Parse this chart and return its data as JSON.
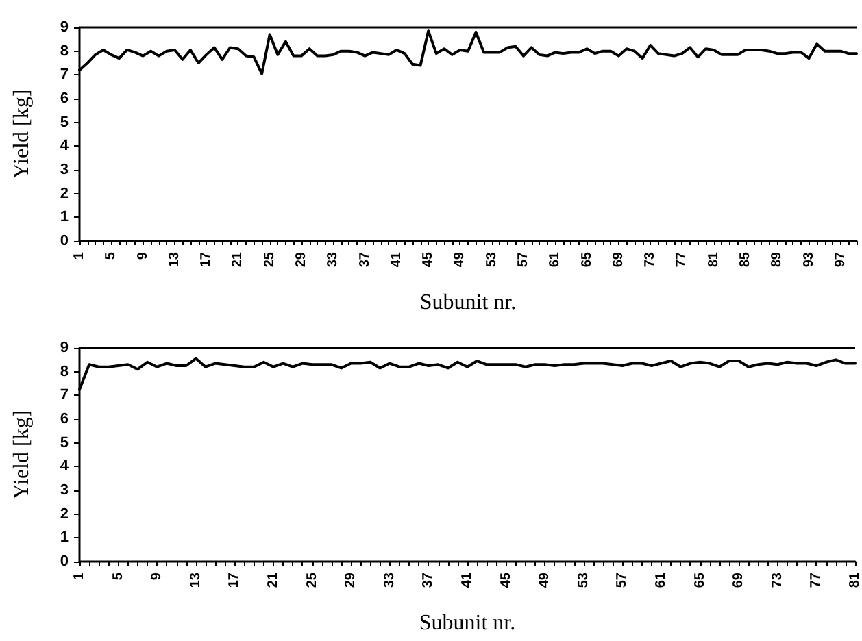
{
  "chart_data": [
    {
      "type": "line",
      "xlabel": "Subunit nr.",
      "ylabel": "Yield [kg]",
      "categories": [
        "1",
        null,
        null,
        null,
        "5",
        null,
        null,
        null,
        "9",
        null,
        null,
        null,
        "13",
        null,
        null,
        null,
        "17",
        null,
        null,
        null,
        "21",
        null,
        null,
        null,
        "25",
        null,
        null,
        null,
        "29",
        null,
        null,
        null,
        "33",
        null,
        null,
        null,
        "37",
        null,
        null,
        null,
        "41",
        null,
        null,
        null,
        "45",
        null,
        null,
        null,
        "49",
        null,
        null,
        null,
        "53",
        null,
        null,
        null,
        "57",
        null,
        null,
        null,
        "61",
        null,
        null,
        null,
        "65",
        null,
        null,
        null,
        "69",
        null,
        null,
        null,
        "73",
        null,
        null,
        null,
        "77",
        null,
        null,
        null,
        "81",
        null,
        null,
        null,
        "85",
        null,
        null,
        null,
        "89",
        null,
        null,
        null,
        "93",
        null,
        null,
        null,
        "97",
        null,
        null
      ],
      "series": [
        {
          "color": "#000000",
          "values": [
            7.2,
            7.5,
            7.85,
            8.05,
            7.85,
            7.7,
            8.05,
            7.95,
            7.8,
            8.0,
            7.8,
            8.0,
            8.05,
            7.65,
            8.05,
            7.5,
            7.85,
            8.15,
            7.65,
            8.15,
            8.1,
            7.8,
            7.75,
            7.05,
            8.7,
            7.85,
            8.4,
            7.8,
            7.8,
            8.1,
            7.8,
            7.8,
            7.85,
            8.0,
            8.0,
            7.95,
            7.8,
            7.95,
            7.9,
            7.85,
            8.05,
            7.9,
            7.45,
            7.4,
            8.85,
            7.9,
            8.1,
            7.85,
            8.05,
            8.0,
            8.8,
            7.95,
            7.95,
            7.95,
            8.15,
            8.2,
            7.8,
            8.15,
            7.85,
            7.8,
            7.95,
            7.9,
            7.95,
            7.95,
            8.1,
            7.9,
            8.0,
            8.0,
            7.8,
            8.1,
            8.0,
            7.7,
            8.25,
            7.9,
            7.85,
            7.8,
            7.9,
            8.15,
            7.75,
            8.1,
            8.05,
            7.85,
            7.85,
            7.85,
            8.05,
            8.05,
            8.05,
            8.0,
            7.9,
            7.9,
            7.95,
            7.95,
            7.7,
            8.3,
            8.0,
            8.0,
            8.0,
            7.9,
            7.9
          ]
        }
      ],
      "ylim": [
        0,
        9
      ],
      "yticks": [
        0,
        1,
        2,
        3,
        4,
        5,
        6,
        7,
        8,
        9
      ],
      "grid": false,
      "marker": "none",
      "line_style": "solid",
      "ref_lines": [
        {
          "axis": "y",
          "value": 9,
          "color": "#000000"
        }
      ]
    },
    {
      "type": "line",
      "xlabel": "Subunit nr.",
      "ylabel": "Yield [kg]",
      "categories": [
        "1",
        null,
        null,
        null,
        "5",
        null,
        null,
        null,
        "9",
        null,
        null,
        null,
        "13",
        null,
        null,
        null,
        "17",
        null,
        null,
        null,
        "21",
        null,
        null,
        null,
        "25",
        null,
        null,
        null,
        "29",
        null,
        null,
        null,
        "33",
        null,
        null,
        null,
        "37",
        null,
        null,
        null,
        "41",
        null,
        null,
        null,
        "45",
        null,
        null,
        null,
        "49",
        null,
        null,
        null,
        "53",
        null,
        null,
        null,
        "57",
        null,
        null,
        null,
        "61",
        null,
        null,
        null,
        "65",
        null,
        null,
        null,
        "69",
        null,
        null,
        null,
        "73",
        null,
        null,
        null,
        "77",
        null,
        null,
        null,
        "81"
      ],
      "series": [
        {
          "color": "#000000",
          "values": [
            7.25,
            8.3,
            8.2,
            8.2,
            8.25,
            8.3,
            8.1,
            8.4,
            8.2,
            8.35,
            8.25,
            8.25,
            8.55,
            8.2,
            8.35,
            8.3,
            8.25,
            8.2,
            8.2,
            8.4,
            8.2,
            8.35,
            8.2,
            8.35,
            8.3,
            8.3,
            8.3,
            8.15,
            8.35,
            8.35,
            8.4,
            8.15,
            8.35,
            8.2,
            8.2,
            8.35,
            8.25,
            8.3,
            8.15,
            8.4,
            8.2,
            8.45,
            8.3,
            8.3,
            8.3,
            8.3,
            8.2,
            8.3,
            8.3,
            8.25,
            8.3,
            8.3,
            8.35,
            8.35,
            8.35,
            8.3,
            8.25,
            8.35,
            8.35,
            8.25,
            8.35,
            8.45,
            8.2,
            8.35,
            8.4,
            8.35,
            8.2,
            8.45,
            8.45,
            8.2,
            8.3,
            8.35,
            8.3,
            8.4,
            8.35,
            8.35,
            8.25,
            8.4,
            8.5,
            8.35,
            8.35
          ]
        }
      ],
      "ylim": [
        0,
        9
      ],
      "yticks": [
        0,
        1,
        2,
        3,
        4,
        5,
        6,
        7,
        8,
        9
      ],
      "grid": false,
      "marker": "none",
      "line_style": "solid",
      "ref_lines": [
        {
          "axis": "y",
          "value": 9,
          "color": "#000000"
        }
      ]
    }
  ]
}
